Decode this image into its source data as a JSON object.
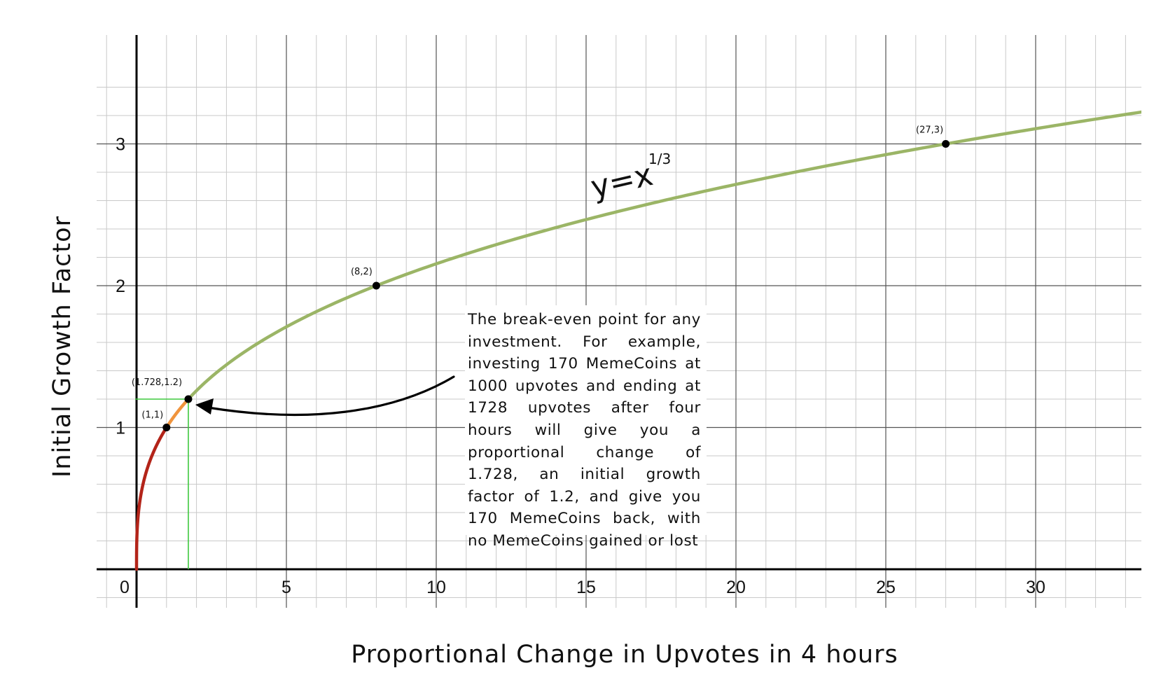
{
  "chart_data": {
    "type": "line",
    "xlabel": "Proportional Change in Upvotes in 4 hours",
    "ylabel": "Initial Growth Factor",
    "xlim": [
      -1.35,
      33.6
    ],
    "ylim": [
      -0.25,
      3.6
    ],
    "x_ticks": [
      "0",
      "5",
      "10",
      "15",
      "20",
      "25",
      "30"
    ],
    "y_ticks": [
      "1",
      "2",
      "3"
    ],
    "grid": true,
    "minor_grid": true,
    "formula": {
      "base": "y=x",
      "exponent": "1/3"
    },
    "series": [
      {
        "label": "y = x^(1/3), x from 0 to 1",
        "segment": [
          0,
          1
        ],
        "color": "#b32419"
      },
      {
        "label": "y = x^(1/3), x from 1 to 1.728",
        "segment": [
          1,
          1.728
        ],
        "color": "#f0943d"
      },
      {
        "label": "y = x^(1/3), x from 1.728",
        "segment": [
          1.728,
          33.6
        ],
        "color": "#9bb566"
      }
    ],
    "points": [
      {
        "x": 1,
        "y": 1,
        "label": "(1,1)"
      },
      {
        "x": 1.728,
        "y": 1.2,
        "label": "(1.728,1.2)"
      },
      {
        "x": 8,
        "y": 2,
        "label": "(8,2)"
      },
      {
        "x": 27,
        "y": 3,
        "label": "(27,3)"
      }
    ],
    "guide_lines": {
      "x": 1.728,
      "y": 1.2,
      "color": "#3ec83e"
    },
    "annotation": {
      "text": "The break-even point for any investment. For example, investing 170 MemeCoins at 1000 upvotes and ending at 1728 upvotes after four hours will give you a proportional change of 1.728, an initial growth factor of 1.2, and give you 170 MemeCoins back, with no MemeCoins gained or lost",
      "points_to": {
        "x": 1.728,
        "y": 1.2
      }
    },
    "colors": {
      "major_grid": "#555555",
      "minor_grid": "#c9c9c9",
      "axis": "#000000"
    }
  }
}
